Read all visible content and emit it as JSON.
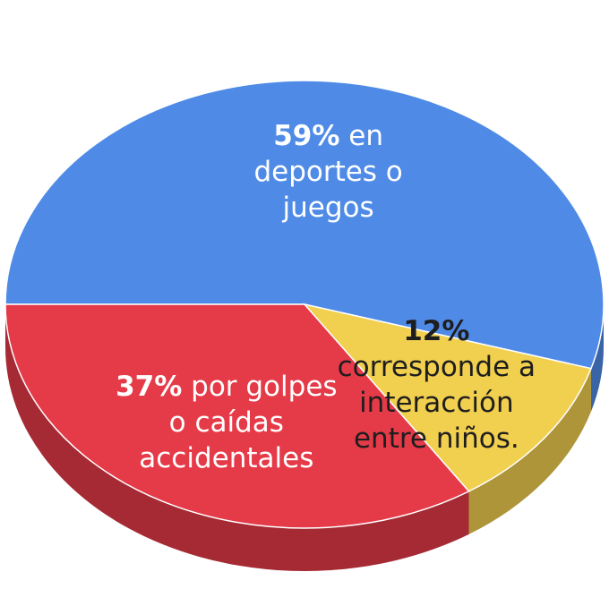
{
  "chart_data": {
    "type": "pie",
    "categories": [
      "en deportes o juegos",
      "corresponde a interacción entre niños.",
      "por golpes o caídas accidentales"
    ],
    "values": [
      59,
      12,
      37
    ],
    "value_labels": [
      "59%",
      "12%",
      "37%"
    ],
    "colors": [
      "#4f8be6",
      "#f1cf4f",
      "#e53a48"
    ]
  }
}
